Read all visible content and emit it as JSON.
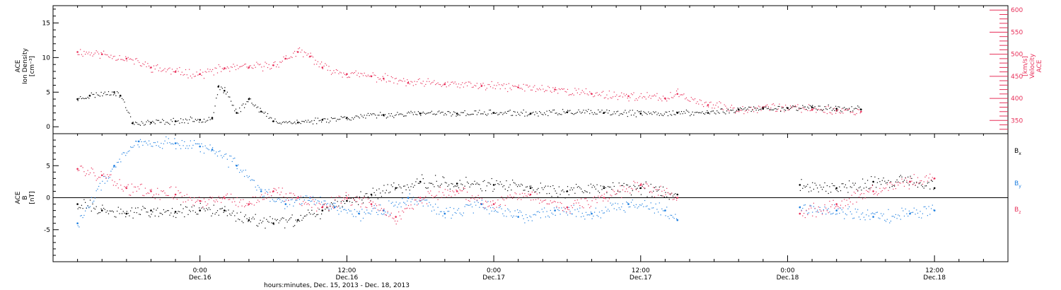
{
  "chart_data": [
    {
      "type": "scatter",
      "panel": "top",
      "ylabel_lines": [
        "ACE",
        "Ion Density",
        "[cm⁻³]"
      ],
      "y2label_lines": [
        "ACE",
        "Velocity",
        "[km/s]"
      ],
      "ylim": [
        -1,
        17.5
      ],
      "y2lim": [
        320,
        610
      ],
      "yticks": [
        0,
        5,
        10,
        15
      ],
      "y2ticks": [
        350,
        400,
        450,
        500,
        550,
        600
      ],
      "colors": {
        "density": "#000000",
        "velocity": "#e8305a"
      },
      "series": [
        {
          "key": "density",
          "axis": "left",
          "x": [
            "Dec.15 14:00",
            "Dec.15 15:00",
            "Dec.15 17:00",
            "Dec.15 17:30",
            "Dec.15 18:30",
            "Dec.15 20:00",
            "Dec.15 22:00",
            "Dec.16 00:00",
            "Dec.16 01:00",
            "Dec.16 01:30",
            "Dec.16 02:00",
            "Dec.16 03:00",
            "Dec.16 04:00",
            "Dec.16 05:00",
            "Dec.16 06:00",
            "Dec.16 08:00",
            "Dec.16 10:00",
            "Dec.16 12:00",
            "Dec.16 15:00",
            "Dec.16 18:00",
            "Dec.16 21:00",
            "Dec.17 00:00",
            "Dec.17 03:00",
            "Dec.17 06:00",
            "Dec.17 09:00",
            "Dec.17 12:00",
            "Dec.17 15:00",
            "Dec.17 17:30",
            "Dec.17 20:00",
            "Dec.17 22:00",
            "Dec.18 00:00",
            "Dec.18 02:00",
            "Dec.18 04:00",
            "Dec.18 06:00"
          ],
          "y": [
            4,
            4.5,
            5,
            4.5,
            0.5,
            0.6,
            0.8,
            1.0,
            1.3,
            5.8,
            5.2,
            2.0,
            4.0,
            2.2,
            0.8,
            0.6,
            1.0,
            1.3,
            1.7,
            1.9,
            1.9,
            2.0,
            1.9,
            2.1,
            2.0,
            1.9,
            2.0,
            2.0,
            2.5,
            2.6,
            2.7,
            2.8,
            2.6,
            2.5
          ]
        },
        {
          "key": "velocity",
          "axis": "right",
          "x": [
            "Dec.15 14:00",
            "Dec.15 16:00",
            "Dec.15 18:00",
            "Dec.15 20:00",
            "Dec.15 22:00",
            "Dec.16 00:00",
            "Dec.16 02:00",
            "Dec.16 04:00",
            "Dec.16 06:00",
            "Dec.16 07:00",
            "Dec.16 08:00",
            "Dec.16 09:00",
            "Dec.16 10:00",
            "Dec.16 12:00",
            "Dec.16 14:00",
            "Dec.16 15:00",
            "Dec.16 17:00",
            "Dec.16 20:00",
            "Dec.16 23:00",
            "Dec.17 02:00",
            "Dec.17 05:00",
            "Dec.17 08:00",
            "Dec.17 11:00",
            "Dec.17 14:00",
            "Dec.17 15:00",
            "Dec.17 17:30",
            "Dec.17 20:00",
            "Dec.17 22:00",
            "Dec.18 00:00",
            "Dec.18 02:00",
            "Dec.18 04:00",
            "Dec.18 06:00"
          ],
          "y": [
            505,
            500,
            490,
            470,
            460,
            455,
            468,
            470,
            475,
            490,
            505,
            495,
            470,
            455,
            450,
            445,
            435,
            432,
            428,
            425,
            420,
            410,
            405,
            400,
            410,
            385,
            375,
            380,
            378,
            375,
            372,
            370
          ]
        }
      ]
    },
    {
      "type": "scatter",
      "panel": "bottom",
      "ylabel_lines": [
        "ACE",
        "B",
        "[nT]"
      ],
      "ylim": [
        -10,
        10
      ],
      "yticks": [
        -5,
        0,
        5
      ],
      "zero_line": true,
      "legend": [
        "Bx",
        "By",
        "Bz"
      ],
      "colors": {
        "Bx": "#000000",
        "By": "#1e7fe0",
        "Bz": "#e8305a"
      },
      "series": [
        {
          "name": "Bx",
          "x": [
            "Dec.15 14:00",
            "Dec.15 16:00",
            "Dec.15 18:00",
            "Dec.15 20:00",
            "Dec.15 22:00",
            "Dec.16 00:00",
            "Dec.16 02:00",
            "Dec.16 04:00",
            "Dec.16 06:00",
            "Dec.16 08:00",
            "Dec.16 10:00",
            "Dec.16 12:00",
            "Dec.16 14:00",
            "Dec.16 16:00",
            "Dec.16 18:00",
            "Dec.16 21:00",
            "Dec.17 00:00",
            "Dec.17 03:00",
            "Dec.17 06:00",
            "Dec.17 09:00",
            "Dec.17 12:00",
            "Dec.17 15:00",
            "Dec.18 01:00",
            "Dec.18 04:00",
            "Dec.18 07:00",
            "Dec.18 10:00",
            "Dec.18 12:00"
          ],
          "y": [
            -1,
            -2,
            -2.5,
            -2,
            -2.2,
            -2,
            -2,
            -3.5,
            -4,
            -3.5,
            -2,
            -0.5,
            0.5,
            1.5,
            2.5,
            2.2,
            2,
            1.5,
            1,
            1.5,
            1.5,
            0.5,
            2,
            1.5,
            2.5,
            2.5,
            1.5
          ]
        },
        {
          "name": "By",
          "x": [
            "Dec.15 14:00",
            "Dec.15 17:00",
            "Dec.15 19:00",
            "Dec.15 22:00",
            "Dec.16 00:00",
            "Dec.16 01:00",
            "Dec.16 03:00",
            "Dec.16 05:00",
            "Dec.16 07:00",
            "Dec.16 09:00",
            "Dec.16 11:00",
            "Dec.16 13:00",
            "Dec.16 15:00",
            "Dec.16 17:00",
            "Dec.16 20:00",
            "Dec.16 23:00",
            "Dec.17 02:00",
            "Dec.17 05:00",
            "Dec.17 08:00",
            "Dec.17 11:00",
            "Dec.17 14:00",
            "Dec.17 15:00",
            "Dec.18 01:00",
            "Dec.18 04:00",
            "Dec.18 07:00",
            "Dec.18 10:00",
            "Dec.18 12:00"
          ],
          "y": [
            -4,
            5,
            8.8,
            8.5,
            8.0,
            7.5,
            5.0,
            1.0,
            -1.0,
            0.0,
            -1.5,
            -2.5,
            -2.0,
            0.0,
            -2.5,
            -1.0,
            -3.0,
            -2.0,
            -2.5,
            -1.0,
            -2.0,
            -3.5,
            -1.5,
            -2.0,
            -3.0,
            -2.5,
            -2.0
          ]
        },
        {
          "name": "Bz",
          "x": [
            "Dec.15 14:00",
            "Dec.15 16:00",
            "Dec.15 18:00",
            "Dec.15 20:00",
            "Dec.15 22:00",
            "Dec.16 00:00",
            "Dec.16 02:00",
            "Dec.16 04:00",
            "Dec.16 06:00",
            "Dec.16 08:00",
            "Dec.16 10:00",
            "Dec.16 12:00",
            "Dec.16 14:00",
            "Dec.16 16:00",
            "Dec.16 18:00",
            "Dec.16 21:00",
            "Dec.17 00:00",
            "Dec.17 03:00",
            "Dec.17 06:00",
            "Dec.17 09:00",
            "Dec.17 12:00",
            "Dec.17 15:00",
            "Dec.18 01:00",
            "Dec.18 04:00",
            "Dec.18 07:00",
            "Dec.18 10:00",
            "Dec.18 12:00"
          ],
          "y": [
            4.5,
            3.5,
            1.5,
            1.0,
            0.5,
            -0.5,
            0.0,
            -1.0,
            1.0,
            0.0,
            -1.5,
            0.0,
            -1.0,
            -3.0,
            0.0,
            1.0,
            -1.0,
            0.5,
            -1.5,
            0.0,
            2.0,
            0.0,
            -2.5,
            -1.0,
            1.0,
            2.5,
            3.0
          ]
        }
      ]
    }
  ],
  "x_axis": {
    "xlim": [
      "Dec.15 12:00",
      "Dec.18 18:00"
    ],
    "ticks": [
      {
        "time": "Dec.16 00:00",
        "label": "0:00",
        "date": "Dec.16"
      },
      {
        "time": "Dec.16 12:00",
        "label": "12:00",
        "date": "Dec.16"
      },
      {
        "time": "Dec.17 00:00",
        "label": "0:00",
        "date": "Dec.17"
      },
      {
        "time": "Dec.17 12:00",
        "label": "12:00",
        "date": "Dec.17"
      },
      {
        "time": "Dec.18 00:00",
        "label": "0:00",
        "date": "Dec.18"
      },
      {
        "time": "Dec.18 12:00",
        "label": "12:00",
        "date": "Dec.18"
      }
    ],
    "title": "hours:minutes, Dec. 15, 2013 - Dec. 18, 2013"
  }
}
